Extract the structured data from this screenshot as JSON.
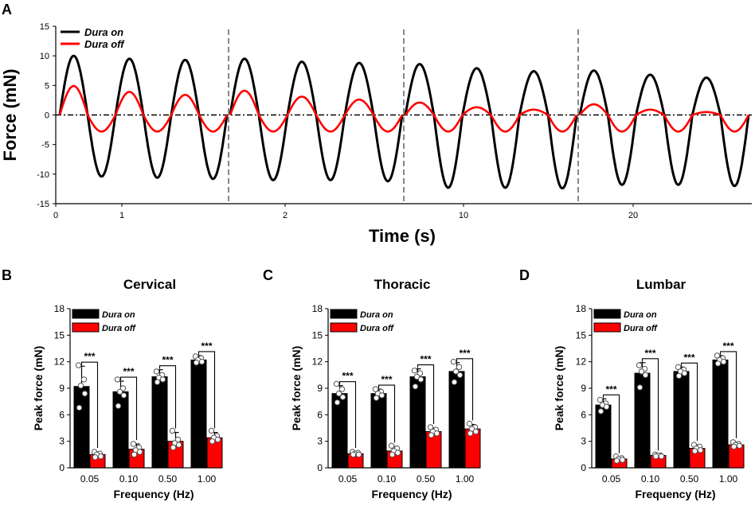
{
  "chart_data": [
    {
      "panel": "A",
      "type": "line",
      "title": "",
      "xlabel": "Time (s)",
      "ylabel": "Force (mN)",
      "ylim": [
        -15,
        15
      ],
      "yticks": [
        -15,
        -10,
        -5,
        0,
        5,
        10,
        15
      ],
      "segment_labels": [
        "0",
        "1",
        "2",
        "10",
        "20"
      ],
      "segments": [
        {
          "frequency_hz": 1,
          "peaks_on": [
            10.0,
            9.5,
            9.3
          ],
          "troughs_on": [
            -10.4,
            -10.6,
            -10.8
          ],
          "peaks_off": [
            4.9,
            3.9,
            3.4
          ],
          "troughs_off": [
            -2.8,
            -2.8,
            -2.8
          ]
        },
        {
          "frequency_hz": 2,
          "peaks_on": [
            9.5,
            9.0,
            8.8
          ],
          "troughs_on": [
            -11.0,
            -11.0,
            -11.2
          ],
          "peaks_off": [
            4.1,
            3.1,
            2.6
          ],
          "troughs_off": [
            -2.8,
            -2.8,
            -2.8
          ]
        },
        {
          "frequency_hz": 10,
          "peaks_on": [
            8.6,
            7.9,
            7.4
          ],
          "troughs_on": [
            -12.3,
            -12.3,
            -12.4
          ],
          "peaks_off": [
            2.1,
            1.3,
            0.9
          ],
          "troughs_off": [
            -2.8,
            -2.8,
            -2.8
          ]
        },
        {
          "frequency_hz": 20,
          "peaks_on": [
            7.5,
            6.8,
            6.3
          ],
          "troughs_on": [
            -11.8,
            -11.8,
            -12.0
          ],
          "peaks_off": [
            1.8,
            0.9,
            0.5
          ],
          "troughs_off": [
            -2.8,
            -2.8,
            -2.8
          ]
        }
      ],
      "legend": [
        {
          "label": "Dura on",
          "color": "#000000"
        },
        {
          "label": "Dura off",
          "color": "#ff0000"
        }
      ]
    },
    {
      "panel": "B",
      "type": "bar",
      "title": "Cervical",
      "xlabel": "Frequency (Hz)",
      "ylabel": "Peak force (mN)",
      "ylim": [
        0,
        18
      ],
      "yticks": [
        0,
        3,
        6,
        9,
        12,
        15,
        18
      ],
      "categories": [
        "0.05",
        "0.10",
        "0.50",
        "1.00"
      ],
      "series": [
        {
          "name": "Dura on",
          "color": "#000000",
          "values": [
            9.2,
            8.6,
            10.3,
            12.2
          ],
          "errors": [
            2.3,
            1.2,
            0.8,
            0.5
          ],
          "points": [
            [
              11.6,
              10.0,
              9.3,
              8.4,
              6.8
            ],
            [
              10.0,
              9.0,
              8.6,
              8.2,
              7.0
            ],
            [
              10.9,
              10.5,
              10.2,
              10.0,
              9.7
            ],
            [
              12.6,
              12.4,
              12.2,
              12.0,
              11.9
            ]
          ]
        },
        {
          "name": "Dura off",
          "color": "#ff0000",
          "values": [
            1.5,
            2.1,
            3.0,
            3.4
          ],
          "errors": [
            0.3,
            0.6,
            1.0,
            0.6
          ],
          "points": [
            [
              1.8,
              1.6,
              1.5,
              1.3,
              1.2
            ],
            [
              2.7,
              2.3,
              2.0,
              1.8,
              1.5
            ],
            [
              4.2,
              3.2,
              2.8,
              2.6,
              2.3
            ],
            [
              4.2,
              3.6,
              3.4,
              3.2,
              3.0
            ]
          ]
        }
      ],
      "significance": [
        "***",
        "***",
        "***",
        "***"
      ]
    },
    {
      "panel": "C",
      "type": "bar",
      "title": "Thoracic",
      "xlabel": "Frequency (Hz)",
      "ylabel": "Peak force (mN)",
      "ylim": [
        0,
        18
      ],
      "yticks": [
        0,
        3,
        6,
        9,
        12,
        15,
        18
      ],
      "categories": [
        "0.05",
        "0.10",
        "0.50",
        "1.00"
      ],
      "series": [
        {
          "name": "Dura on",
          "color": "#000000",
          "values": [
            8.4,
            8.4,
            10.3,
            10.9
          ],
          "errors": [
            0.9,
            0.5,
            0.9,
            1.0
          ],
          "points": [
            [
              9.5,
              8.9,
              8.4,
              8.0,
              7.4
            ],
            [
              8.9,
              8.6,
              8.4,
              8.2,
              7.9
            ],
            [
              11.0,
              10.7,
              10.3,
              10.0,
              9.2
            ],
            [
              12.0,
              11.4,
              10.9,
              10.5,
              9.7
            ]
          ]
        },
        {
          "name": "Dura off",
          "color": "#ff0000",
          "values": [
            1.6,
            1.9,
            4.1,
            4.4
          ],
          "errors": [
            0.2,
            0.5,
            0.4,
            0.5
          ],
          "points": [
            [
              1.8,
              1.7,
              1.6,
              1.5,
              1.5
            ],
            [
              2.5,
              2.2,
              1.9,
              1.7,
              1.5
            ],
            [
              4.6,
              4.3,
              4.1,
              3.9,
              3.7
            ],
            [
              5.0,
              4.6,
              4.4,
              4.1,
              3.9
            ]
          ]
        }
      ],
      "significance": [
        "***",
        "***",
        "***",
        "***"
      ]
    },
    {
      "panel": "D",
      "type": "bar",
      "title": "Lumbar",
      "xlabel": "Frequency (Hz)",
      "ylabel": "Peak force (mN)",
      "ylim": [
        0,
        18
      ],
      "yticks": [
        0,
        3,
        6,
        9,
        12,
        15,
        18
      ],
      "categories": [
        "0.05",
        "0.10",
        "0.50",
        "1.00"
      ],
      "series": [
        {
          "name": "Dura on",
          "color": "#000000",
          "values": [
            7.1,
            10.7,
            10.9,
            12.2
          ],
          "errors": [
            0.7,
            1.2,
            0.5,
            0.5
          ],
          "points": [
            [
              7.7,
              7.3,
              7.1,
              6.9,
              6.4
            ],
            [
              11.6,
              11.2,
              10.9,
              10.5,
              9.1
            ],
            [
              11.4,
              11.1,
              10.9,
              10.7,
              10.4
            ],
            [
              12.7,
              12.4,
              12.2,
              12.0,
              11.8
            ]
          ]
        },
        {
          "name": "Dura off",
          "color": "#ff0000",
          "values": [
            1.0,
            1.4,
            2.2,
            2.6
          ],
          "errors": [
            0.2,
            0.1,
            0.4,
            0.3
          ],
          "points": [
            [
              1.3,
              1.1,
              1.0,
              0.9,
              0.8
            ],
            [
              1.5,
              1.4,
              1.4,
              1.3,
              1.3
            ],
            [
              2.6,
              2.4,
              2.2,
              2.0,
              1.9
            ],
            [
              2.9,
              2.7,
              2.6,
              2.5,
              2.4
            ]
          ]
        }
      ],
      "significance": [
        "***",
        "***",
        "***",
        "***"
      ]
    }
  ]
}
